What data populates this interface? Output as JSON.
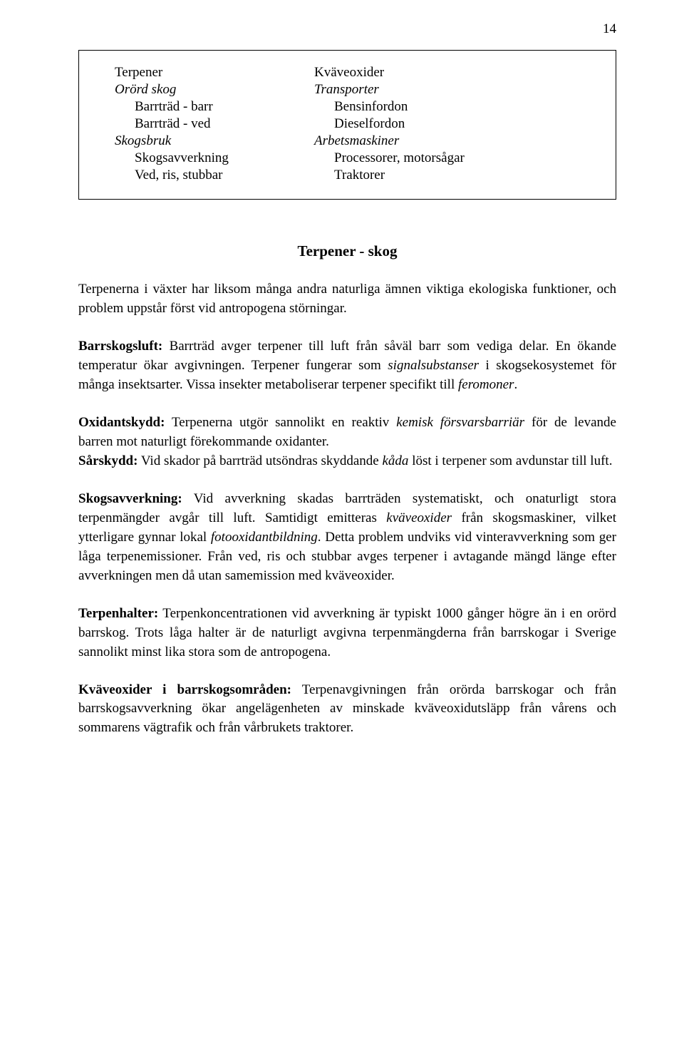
{
  "page_number": "14",
  "box": {
    "left": {
      "head": "Terpener",
      "sub1": "Orörd skog",
      "items1": [
        "Barrträd - barr",
        "Barrträd - ved"
      ],
      "sub2": "Skogsbruk",
      "items2": [
        "Skogsavverkning",
        "Ved, ris, stubbar"
      ]
    },
    "right": {
      "head": "Kväveoxider",
      "sub1": "Transporter",
      "items1": [
        "Bensinfordon",
        "Dieselfordon"
      ],
      "sub2": "Arbetsmaskiner",
      "items2": [
        "Processorer, motorsågar",
        "Traktorer"
      ]
    }
  },
  "section_title": "Terpener - skog",
  "p1": "Terpenerna i växter har liksom många andra naturliga ämnen viktiga ekologiska funktioner, och problem uppstår först vid antropogena störningar.",
  "p2": {
    "label": "Barrskogsluft:",
    "t1": " Barrträd avger terpener till luft från såväl barr som vediga delar. En ökande temperatur ökar avgivningen. Terpener fungerar som ",
    "i1": "signalsubstanser",
    "t2": " i skogsekosystemet för många insektsarter. Vissa insekter metaboliserar terpener specifikt till ",
    "i2": "feromoner",
    "t3": "."
  },
  "p3": {
    "label1": "Oxidantskydd:",
    "t1": " Terpenerna utgör sannolikt en reaktiv ",
    "i1": "kemisk försvarsbarriär",
    "t2": " för de levande barren mot naturligt förekommande oxidanter.",
    "label2": "Sårskydd:",
    "t3": " Vid skador på barrträd utsöndras skyddande ",
    "i2": "kåda",
    "t4": " löst i terpener som avdunstar till luft."
  },
  "p4": {
    "label": "Skogsavverkning:",
    "t1": " Vid avverkning skadas barrträden systematiskt, och onaturligt stora terpenmängder avgår till luft. Samtidigt emitteras ",
    "i1": "kväveoxider",
    "t2": " från skogsmaskiner, vilket ytterligare gynnar lokal ",
    "i2": "fotooxidantbildning",
    "t3": ". Detta problem undviks vid vinteravverkning som ger låga terpenemissioner. Från ved, ris och stubbar avges terpener i avtagande mängd länge efter avverkningen men då utan samemission med kväveoxider."
  },
  "p5": {
    "label": "Terpenhalter:",
    "t1": " Terpenkoncentrationen vid avverkning är typiskt 1000 gånger högre än i en orörd barrskog. Trots låga halter är de naturligt avgivna terpenmängderna från barrskogar i Sverige sannolikt minst lika stora som de antropogena."
  },
  "p6": {
    "label": "Kväveoxider i barrskogsområden:",
    "t1": " Terpenavgivningen från orörda barrskogar och från barrskogsavverkning ökar angelägenheten av minskade kväveoxidutsläpp från vårens och sommarens vägtrafik och från vårbrukets traktorer."
  }
}
